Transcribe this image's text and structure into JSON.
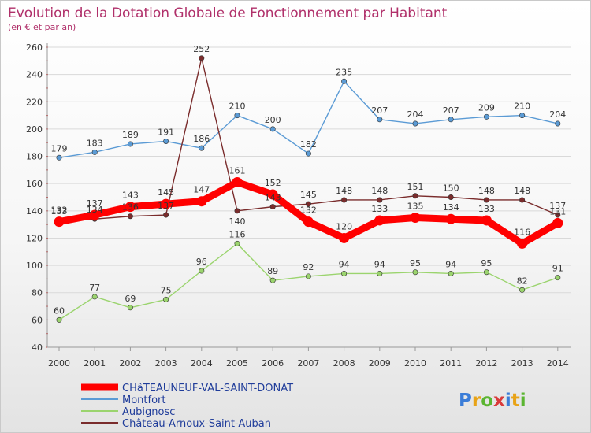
{
  "chart_data": {
    "type": "line",
    "title": "Evolution de la Dotation Globale de Fonctionnement par Habitant",
    "subtitle": "(en € et par an)",
    "categories": [
      "2000",
      "2001",
      "2002",
      "2003",
      "2004",
      "2005",
      "2006",
      "2007",
      "2008",
      "2009",
      "2010",
      "2011",
      "2012",
      "2013",
      "2014"
    ],
    "ylim": [
      40,
      260
    ],
    "yticks": [
      "40",
      "60",
      "80",
      "100",
      "120",
      "140",
      "160",
      "180",
      "200",
      "220",
      "240",
      "260"
    ],
    "grid": "horizontal",
    "legend_position": "bottom-left",
    "series": [
      {
        "name": "Montfort",
        "color": "#5b9bd5",
        "values": [
          179,
          183,
          189,
          191,
          186,
          210,
          200,
          182,
          235,
          207,
          204,
          207,
          209,
          210,
          204
        ]
      },
      {
        "name": "Aubignosc",
        "color": "#9bd46e",
        "values": [
          60,
          77,
          69,
          75,
          96,
          116,
          89,
          92,
          94,
          94,
          95,
          94,
          95,
          82,
          91
        ]
      },
      {
        "name": "Château-Arnoux-Saint-Auban",
        "color": "#7a2c2c",
        "values": [
          133,
          134,
          136,
          137,
          252,
          140,
          143,
          145,
          148,
          148,
          151,
          150,
          148,
          148,
          137
        ]
      },
      {
        "name": "CHâTEAUNEUF-VAL-SAINT-DONAT",
        "color": "#ff0000",
        "values": [
          132,
          137,
          143,
          145,
          147,
          161,
          152,
          132,
          120,
          133,
          135,
          134,
          133,
          116,
          131
        ]
      }
    ],
    "legend": [
      "CHâTEAUNEUF-VAL-SAINT-DONAT",
      "Montfort",
      "Aubignosc",
      "Château-Arnoux-Saint-Auban"
    ]
  },
  "logo": {
    "letters": [
      "P",
      "r",
      "o",
      "x",
      "i",
      "t",
      "i"
    ],
    "colors": [
      "#3b7dd8",
      "#e8a317",
      "#5bb531",
      "#d93a3a",
      "#3b7dd8",
      "#e8a317",
      "#5bb531"
    ]
  }
}
